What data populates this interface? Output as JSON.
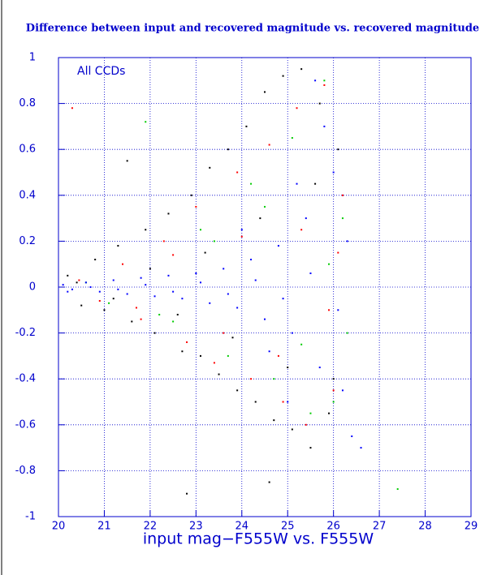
{
  "chart_data": {
    "type": "scatter",
    "title": "Difference between input and recovered magnitude vs. recovered magnitude",
    "x_label": "input mag−F555W vs. F555W",
    "annotation": "All CCDs",
    "xlim": [
      20,
      29
    ],
    "xticks": [
      20,
      21,
      22,
      23,
      24,
      25,
      26,
      27,
      28,
      29
    ],
    "ylim": [
      -1,
      1
    ],
    "yticks": [
      -1,
      -0.8,
      -0.6,
      -0.4,
      -0.2,
      0,
      0.2,
      0.4,
      0.6,
      0.8,
      1
    ],
    "grid": true,
    "axis_color": "#0000cc",
    "series": [
      {
        "color": "#000000",
        "x": [
          20.2,
          20.5,
          20.8,
          21.0,
          21.3,
          21.6,
          21.9,
          22.1,
          22.4,
          22.7,
          22.9,
          23.1,
          23.3,
          23.5,
          23.7,
          23.9,
          24.1,
          24.3,
          24.5,
          24.7,
          24.9,
          25.1,
          25.3,
          25.5,
          25.7,
          25.9,
          26.1,
          20.4,
          21.2,
          22.0,
          22.6,
          23.2,
          23.8,
          24.4,
          25.0,
          25.6,
          26.0,
          21.5,
          22.8,
          24.6
        ],
        "values": [
          0.05,
          -0.08,
          0.12,
          -0.1,
          0.18,
          -0.15,
          0.25,
          -0.2,
          0.32,
          -0.28,
          0.4,
          -0.3,
          0.52,
          -0.38,
          0.6,
          -0.45,
          0.7,
          -0.5,
          0.85,
          -0.58,
          0.92,
          -0.62,
          0.95,
          -0.7,
          0.8,
          -0.55,
          0.6,
          0.02,
          -0.05,
          0.08,
          -0.12,
          0.15,
          -0.22,
          0.3,
          -0.35,
          0.45,
          -0.4,
          0.55,
          -0.9,
          -0.85
        ]
      },
      {
        "color": "#ff0000",
        "x": [
          20.3,
          20.9,
          21.4,
          21.8,
          22.3,
          22.8,
          23.0,
          23.4,
          23.9,
          24.2,
          24.6,
          24.9,
          25.2,
          25.4,
          25.8,
          26.0,
          26.2,
          20.45,
          21.7,
          22.5,
          23.6,
          24.0,
          24.8,
          25.3,
          25.9,
          26.1
        ],
        "values": [
          0.78,
          -0.06,
          0.1,
          -0.14,
          0.2,
          -0.24,
          0.35,
          -0.33,
          0.5,
          -0.4,
          0.62,
          -0.5,
          0.78,
          -0.6,
          0.88,
          -0.45,
          0.4,
          0.03,
          -0.09,
          0.14,
          -0.2,
          0.22,
          -0.3,
          0.25,
          -0.1,
          0.15
        ]
      },
      {
        "color": "#00cc00",
        "x": [
          20.6,
          21.1,
          21.9,
          22.5,
          23.1,
          23.7,
          24.2,
          24.7,
          25.1,
          25.5,
          25.8,
          26.0,
          26.2,
          22.2,
          23.4,
          24.5,
          25.3,
          25.9,
          26.3,
          27.4
        ],
        "values": [
          0.02,
          -0.07,
          0.72,
          -0.15,
          0.25,
          -0.3,
          0.45,
          -0.4,
          0.65,
          -0.55,
          0.9,
          -0.5,
          0.3,
          -0.12,
          0.2,
          0.35,
          -0.25,
          0.1,
          -0.2,
          -0.88
        ]
      },
      {
        "color": "#0000ff",
        "x": [
          20.1,
          20.3,
          20.6,
          20.9,
          21.2,
          21.5,
          21.8,
          22.1,
          22.4,
          22.7,
          23.0,
          23.3,
          23.6,
          23.9,
          24.2,
          24.5,
          24.8,
          25.1,
          25.4,
          25.7,
          26.0,
          26.2,
          20.2,
          20.7,
          21.3,
          21.9,
          22.5,
          23.1,
          23.7,
          24.3,
          24.9,
          25.5,
          26.1,
          24.0,
          24.6,
          25.2,
          25.8,
          26.3,
          25.0,
          25.6,
          26.4,
          26.6
        ],
        "values": [
          0.01,
          -0.01,
          0.02,
          -0.02,
          0.03,
          -0.03,
          0.04,
          -0.04,
          0.05,
          -0.05,
          0.06,
          -0.07,
          0.08,
          -0.09,
          0.12,
          -0.14,
          0.18,
          -0.2,
          0.3,
          -0.35,
          0.5,
          -0.45,
          -0.02,
          0.0,
          -0.01,
          0.01,
          -0.02,
          0.02,
          -0.03,
          0.03,
          -0.05,
          0.06,
          -0.1,
          0.25,
          -0.28,
          0.45,
          0.7,
          0.2,
          -0.5,
          0.9,
          -0.65,
          -0.7
        ]
      }
    ]
  }
}
